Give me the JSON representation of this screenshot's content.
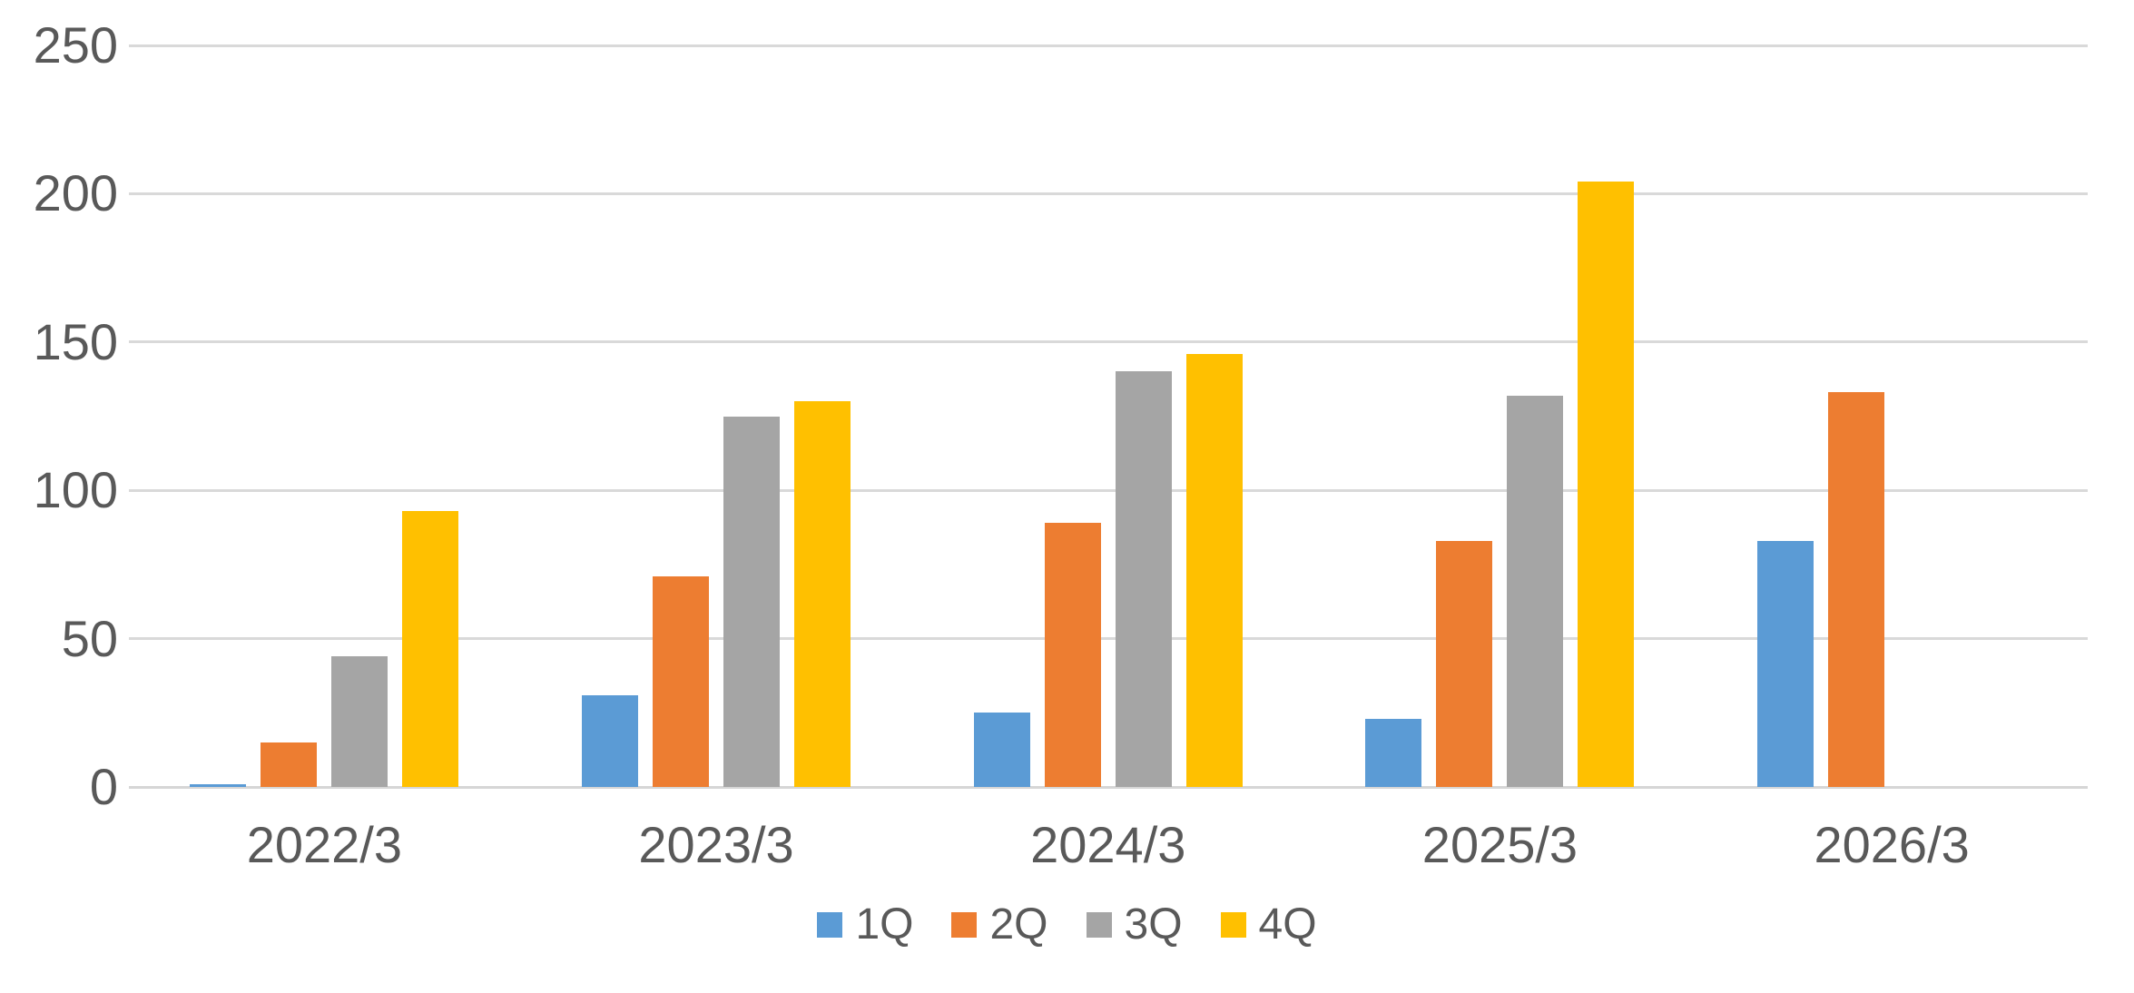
{
  "chart_data": {
    "type": "bar",
    "title": "",
    "xlabel": "",
    "ylabel": "",
    "categories": [
      "2022/3",
      "2023/3",
      "2024/3",
      "2025/3",
      "2026/3"
    ],
    "series": [
      {
        "name": "1Q",
        "color": "#5B9BD5",
        "values": [
          1,
          31,
          25,
          23,
          83
        ]
      },
      {
        "name": "2Q",
        "color": "#ED7D31",
        "values": [
          15,
          71,
          89,
          83,
          133
        ]
      },
      {
        "name": "3Q",
        "color": "#A5A5A5",
        "values": [
          44,
          125,
          140,
          132,
          null
        ]
      },
      {
        "name": "4Q",
        "color": "#FFC000",
        "values": [
          93,
          130,
          146,
          204,
          null
        ]
      }
    ],
    "ylim": [
      0,
      250
    ],
    "yticks": [
      0,
      50,
      100,
      150,
      200,
      250
    ],
    "grid": true,
    "legend_position": "bottom",
    "legend_labels": [
      "1Q",
      "2Q",
      "3Q",
      "4Q"
    ]
  },
  "style": {
    "background_color": "#FFFFFF",
    "gridline_color": "#D9D9D9",
    "axis_line_color": "#D6D6D6",
    "label_color": "#595959"
  }
}
